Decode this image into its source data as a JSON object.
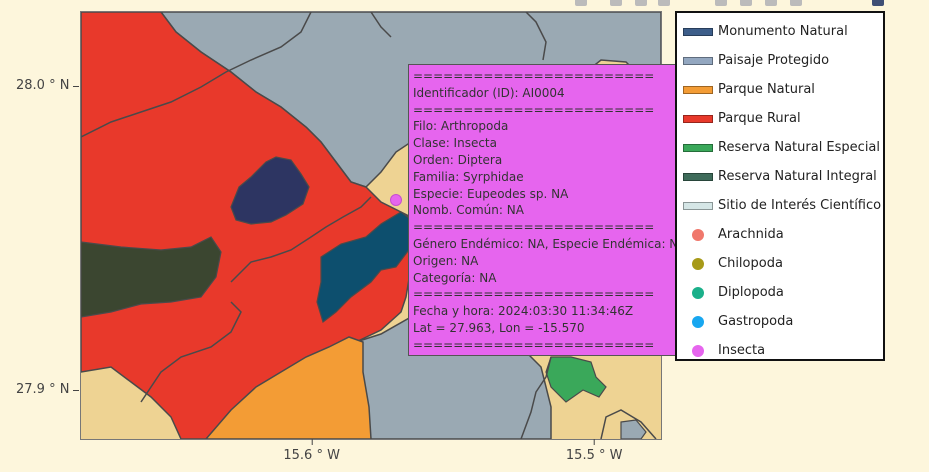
{
  "axes": {
    "y_ticks": [
      {
        "label": "28.0 ° N",
        "value": 28.0
      },
      {
        "label": "27.9 ° N",
        "value": 27.9
      }
    ],
    "x_ticks": [
      {
        "label": "15.6 ° W",
        "value": -15.6
      },
      {
        "label": "15.5 ° W",
        "value": -15.5
      }
    ],
    "lon_range": [
      -15.682,
      -15.476
    ],
    "lat_range": [
      27.884,
      28.025
    ]
  },
  "legend": {
    "items": [
      {
        "label": "Monumento Natural",
        "kind": "area",
        "color": "#3d5e8a"
      },
      {
        "label": "Paisaje Protegido",
        "kind": "area",
        "color": "#93a7c0"
      },
      {
        "label": "Parque Natural",
        "kind": "area",
        "color": "#f39c35"
      },
      {
        "label": "Parque Rural",
        "kind": "area",
        "color": "#e8392b"
      },
      {
        "label": "Reserva Natural Especial",
        "kind": "area",
        "color": "#3aa85a"
      },
      {
        "label": "Reserva Natural Integral",
        "kind": "area",
        "color": "#3e6b5a"
      },
      {
        "label": "Sitio de Interés Científico",
        "kind": "area",
        "color": "#d5e6e6"
      },
      {
        "label": "Arachnida",
        "kind": "point",
        "color": "#f0786c"
      },
      {
        "label": "Chilopoda",
        "kind": "point",
        "color": "#a79a18"
      },
      {
        "label": "Diplopoda",
        "kind": "point",
        "color": "#1bb08a"
      },
      {
        "label": "Gastropoda",
        "kind": "point",
        "color": "#18a7f0"
      },
      {
        "label": "Insecta",
        "kind": "point",
        "color": "#e665ee"
      }
    ]
  },
  "hover_point": {
    "lon": -15.57,
    "lat": 27.963,
    "class": "Insecta"
  },
  "tooltip": {
    "lines": [
      "========================",
      "Identificador (ID): AI0004",
      "========================",
      "Filo: Arthropoda",
      "Clase: Insecta",
      "Orden: Diptera",
      "Familia: Syrphidae",
      "Especie: Eupeodes sp. NA",
      "Nomb. Común: NA",
      "========================",
      "Género Endémico: NA, Especie Endémica: NA",
      "Origen: NA",
      "Categoría: NA",
      "========================",
      "Fecha y hora: 2024:03:30 11:34:46Z",
      "Lat = 27.963, Lon = -15.570",
      "========================"
    ]
  },
  "map_colors": {
    "land": "#eed393",
    "paisaje": "#9aa9b3",
    "parque_rural": "#e8392b",
    "parque_natural": "#f39c35",
    "reserva_integral": "#3b4630",
    "monumento": "#2d3562",
    "reserva_especial_teal": "#0d4f6e",
    "reserva_especial": "#3aa85a",
    "boundary": "#4a4a4a"
  }
}
